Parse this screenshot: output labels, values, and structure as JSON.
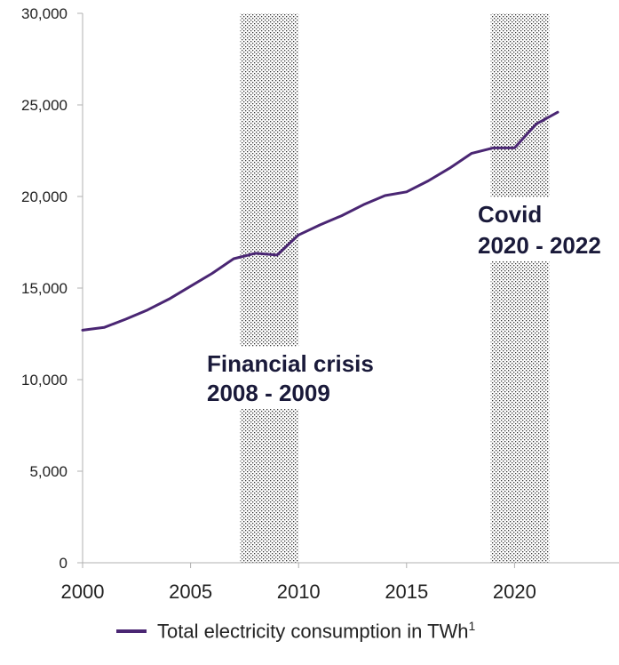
{
  "chart_data": {
    "type": "line",
    "x": [
      2000,
      2001,
      2002,
      2003,
      2004,
      2005,
      2006,
      2007,
      2008,
      2009,
      2010,
      2011,
      2012,
      2013,
      2014,
      2015,
      2016,
      2017,
      2018,
      2019,
      2020,
      2021,
      2022
    ],
    "series": [
      {
        "name": "Total electricity consumption in TWh",
        "footnote": "1",
        "values": [
          12700,
          12850,
          13300,
          13800,
          14400,
          15100,
          15800,
          16600,
          16900,
          16800,
          17900,
          18450,
          18950,
          19550,
          20050,
          20250,
          20850,
          21550,
          22350,
          22650,
          22650,
          23950,
          24600
        ],
        "color": "#4a2673"
      }
    ],
    "xlim": [
      2000,
      2025
    ],
    "ylim": [
      0,
      30000
    ],
    "x_ticks": [
      2000,
      2005,
      2010,
      2015,
      2020
    ],
    "y_ticks": [
      0,
      5000,
      10000,
      15000,
      20000,
      25000,
      30000
    ],
    "y_tick_labels": [
      "0",
      "5,000",
      "10,000",
      "15,000",
      "20,000",
      "25,000",
      "30,000"
    ],
    "grid": false,
    "legend_position": "bottom",
    "shaded_periods": [
      {
        "from": 2007.3,
        "to": 2010,
        "label_line1": "Financial crisis",
        "label_line2": "2008 - 2009"
      },
      {
        "from": 2018.9,
        "to": 2021.6,
        "label_line1": "Covid",
        "label_line2": "2020 - 2022"
      }
    ]
  },
  "legend": {
    "label": "Total electricity consumption in TWh",
    "footnote": "1"
  }
}
